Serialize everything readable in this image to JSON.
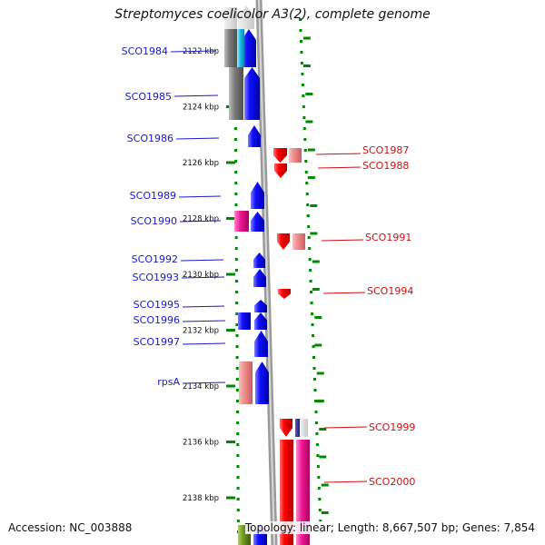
{
  "title": "Streptomyces coelicolor A3(2), complete genome",
  "accession": "Accession: NC_003888",
  "summary": "Topology: linear; Length: 8,667,507 bp; Genes: 7,854",
  "colors": {
    "forward": "#0000ee",
    "reverse": "#ee0000",
    "ticks": "#008800",
    "backbone": "#999999",
    "label_forward": "#1a1acc",
    "label_reverse": "#cc1111"
  },
  "ruler": {
    "ticks": [
      {
        "label": "2122 kbp",
        "kbp": 2122
      },
      {
        "label": "2124 kbp",
        "kbp": 2124
      },
      {
        "label": "2126 kbp",
        "kbp": 2126
      },
      {
        "label": "2128 kbp",
        "kbp": 2128
      },
      {
        "label": "2130 kbp",
        "kbp": 2130
      },
      {
        "label": "2132 kbp",
        "kbp": 2132
      },
      {
        "label": "2134 kbp",
        "kbp": 2134
      },
      {
        "label": "2136 kbp",
        "kbp": 2136
      },
      {
        "label": "2138 kbp",
        "kbp": 2138
      }
    ]
  },
  "genes": {
    "forward": [
      "SCO1984",
      "SCO1985",
      "SCO1986",
      "SCO1989",
      "SCO1990",
      "SCO1992",
      "SCO1993",
      "SCO1995",
      "SCO1996",
      "SCO1997",
      "rpsA"
    ],
    "reverse": [
      "SCO1987",
      "SCO1988",
      "SCO1991",
      "SCO1994",
      "SCO1999",
      "SCO2000"
    ]
  }
}
